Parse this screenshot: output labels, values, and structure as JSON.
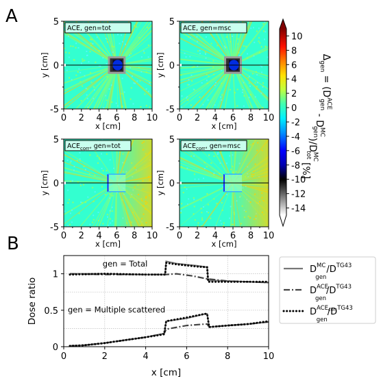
{
  "panel_labels": {
    "a": "A",
    "b": "B"
  },
  "colors": {
    "field_base": "#33ffd0",
    "field_streak": "#a8ff50",
    "field_hot": "#ffd000",
    "square_dark": "#0a0a30",
    "square_blue": "#0033ff",
    "tag_bg": "#c8ffee",
    "gray_line": "#777777",
    "dark_line": "#444444"
  },
  "chart_data": [
    {
      "type": "heatmap",
      "tag": "ACE, gen=tot",
      "xlabel": "x [cm]",
      "ylabel": "y [cm]",
      "xlim": [
        0,
        10
      ],
      "ylim": [
        -5,
        5
      ],
      "xticks": [
        "0",
        "2",
        "4",
        "6",
        "8",
        "10"
      ],
      "yticks": [
        "5",
        "0",
        "-5"
      ],
      "square": {
        "x0": 5,
        "x1": 7,
        "y0": -1,
        "y1": 1,
        "style": "filled"
      }
    },
    {
      "type": "heatmap",
      "tag": "ACE, gen=msc",
      "xlabel": "x [cm]",
      "ylabel": "y [cm]",
      "xlim": [
        0,
        10
      ],
      "ylim": [
        -5,
        5
      ],
      "xticks": [
        "0",
        "2",
        "4",
        "6",
        "8",
        "10"
      ],
      "yticks": [
        "5",
        "0",
        "-5"
      ],
      "square": {
        "x0": 5,
        "x1": 7,
        "y0": -1,
        "y1": 1,
        "style": "filled"
      }
    },
    {
      "type": "heatmap",
      "tag": "ACEcorr, gen=tot",
      "tag_main": "ACE",
      "tag_sub": "corr",
      "tag_rest": ", gen=tot",
      "xlabel": "x [cm]",
      "ylabel": "y [cm]",
      "xlim": [
        0,
        10
      ],
      "ylim": [
        -5,
        5
      ],
      "xticks": [
        "0",
        "2",
        "4",
        "6",
        "8",
        "10"
      ],
      "yticks": [
        "5",
        "0",
        "-5"
      ],
      "square": {
        "x0": 5,
        "x1": 7,
        "y0": -1,
        "y1": 1,
        "style": "outline"
      }
    },
    {
      "type": "heatmap",
      "tag": "ACEcorr, gen=msc",
      "tag_main": "ACE",
      "tag_sub": "corr",
      "tag_rest": ", gen=msc",
      "xlabel": "x [cm]",
      "ylabel": "y [cm]",
      "xlim": [
        0,
        10
      ],
      "ylim": [
        -5,
        5
      ],
      "xticks": [
        "0",
        "2",
        "4",
        "6",
        "8",
        "10"
      ],
      "yticks": [
        "5",
        "0",
        "-5"
      ],
      "square": {
        "x0": 5,
        "x1": 7,
        "y0": -1,
        "y1": 1,
        "style": "outline"
      }
    },
    {
      "type": "colorbar",
      "label": "Δgen = (DACEgen - DMCgen)/DMCtot [%]",
      "ticks": [
        10,
        8,
        6,
        4,
        2,
        0,
        -2,
        -4,
        -6,
        -8,
        -10,
        -12,
        -14
      ],
      "range": [
        -15,
        11
      ],
      "extend": "both",
      "stops": [
        {
          "v": -15,
          "c": "#ffffff"
        },
        {
          "v": -10,
          "c": "#000000"
        },
        {
          "v": -8,
          "c": "#0000b0"
        },
        {
          "v": -6,
          "c": "#0000ff"
        },
        {
          "v": -3.5,
          "c": "#0090ff"
        },
        {
          "v": -1.5,
          "c": "#00f0ff"
        },
        {
          "v": 0.5,
          "c": "#40ffb0"
        },
        {
          "v": 2.5,
          "c": "#c0ff40"
        },
        {
          "v": 4.5,
          "c": "#ffe000"
        },
        {
          "v": 6.5,
          "c": "#ff8000"
        },
        {
          "v": 8.5,
          "c": "#ff1000"
        },
        {
          "v": 11,
          "c": "#800000"
        }
      ]
    },
    {
      "type": "line",
      "xlabel": "x [cm]",
      "ylabel": "Dose ratio",
      "xlim": [
        0,
        10
      ],
      "ylim": [
        0,
        1.25
      ],
      "xticks": [
        0,
        2,
        4,
        6,
        8,
        10
      ],
      "yticks": [
        0,
        0.5,
        1
      ],
      "ytick_labels": [
        "0",
        "0.5",
        "1"
      ],
      "annotations": [
        {
          "text": "gen = Total",
          "x": 1.9,
          "y": 1.1
        },
        {
          "text": "gen = Multiple scattered",
          "x": 0.2,
          "y": 0.47
        }
      ],
      "legend": {
        "position": "right",
        "entries": [
          "DMCgen/DTG43",
          "DACEgen/DTG43",
          "DACEcorrgen/DTG43"
        ]
      },
      "series": [
        {
          "key": "mc_tot",
          "style": "solid",
          "x": [
            0.3,
            2,
            4,
            4.95,
            5.0,
            5.5,
            6.5,
            7.0,
            7.05,
            8,
            9,
            10
          ],
          "values": [
            1.0,
            1.0,
            0.99,
            0.99,
            1.17,
            1.14,
            1.11,
            1.09,
            0.91,
            0.9,
            0.89,
            0.88
          ]
        },
        {
          "key": "ace_tot",
          "style": "dashdot",
          "x": [
            0.3,
            2,
            4,
            5.0,
            5.5,
            6.3,
            7.0,
            8,
            9,
            10
          ],
          "values": [
            1.0,
            0.99,
            0.99,
            0.99,
            1.0,
            0.97,
            0.93,
            0.9,
            0.89,
            0.88
          ]
        },
        {
          "key": "acecorr_tot",
          "style": "dotted",
          "x": [
            0.3,
            2,
            4,
            4.95,
            5.0,
            5.5,
            6.5,
            7.0,
            7.05,
            8,
            9,
            10
          ],
          "values": [
            0.99,
            1.0,
            0.99,
            0.99,
            1.15,
            1.13,
            1.1,
            1.09,
            0.89,
            0.89,
            0.89,
            0.89
          ]
        },
        {
          "key": "mc_msc",
          "style": "solid",
          "x": [
            0.3,
            1,
            2,
            3,
            4,
            4.9,
            5.0,
            6.0,
            6.9,
            7.0,
            7.1,
            8,
            9,
            10
          ],
          "values": [
            0.01,
            0.02,
            0.05,
            0.09,
            0.13,
            0.18,
            0.35,
            0.39,
            0.45,
            0.45,
            0.27,
            0.29,
            0.31,
            0.34
          ]
        },
        {
          "key": "ace_msc",
          "style": "dashdot",
          "x": [
            0.3,
            1,
            2,
            3,
            4,
            4.9,
            5.0,
            6.0,
            6.9,
            7.0,
            7.1,
            8,
            9,
            10
          ],
          "values": [
            0.01,
            0.02,
            0.05,
            0.09,
            0.13,
            0.18,
            0.24,
            0.29,
            0.31,
            0.31,
            0.27,
            0.29,
            0.31,
            0.34
          ]
        },
        {
          "key": "acecorr_msc",
          "style": "dotted",
          "x": [
            0.3,
            1,
            2,
            3,
            4,
            4.9,
            5.0,
            6.0,
            6.9,
            7.0,
            7.1,
            8,
            9,
            10
          ],
          "values": [
            0.01,
            0.02,
            0.05,
            0.09,
            0.13,
            0.17,
            0.35,
            0.4,
            0.45,
            0.45,
            0.27,
            0.29,
            0.31,
            0.35
          ]
        }
      ]
    }
  ]
}
